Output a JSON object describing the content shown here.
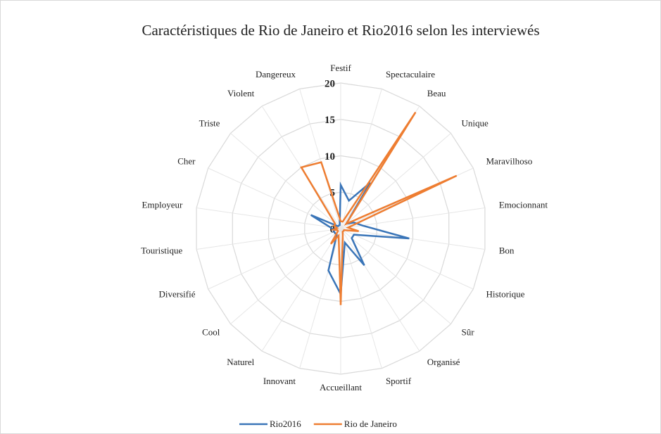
{
  "chart_data": {
    "type": "radar",
    "title": "Caractéristiques de Rio de Janeiro et Rio2016 selon les interviewés",
    "categories": [
      "Festif",
      "Spectaculaire",
      "Beau",
      "Unique",
      "Maravilhoso",
      "Emocionnant",
      "Bon",
      "Historique",
      "Sûr",
      "Organisé",
      "Sportif",
      "Accueillant",
      "Innovant",
      "Naturel",
      "Cool",
      "Diversifié",
      "Touristique",
      "Employeur",
      "Cher",
      "Triste",
      "Violent",
      "Dangereux"
    ],
    "series": [
      {
        "name": "Rio2016",
        "color": "#3a75b8",
        "values": [
          6,
          4,
          7.5,
          1,
          2,
          3,
          9.5,
          2,
          2,
          6,
          2,
          9,
          6,
          1,
          1,
          1,
          1,
          1.5,
          4.5,
          0.5,
          0.5,
          0.5
        ]
      },
      {
        "name": "Rio de Janeiro",
        "color": "#ee7d31",
        "values": [
          1,
          1,
          19,
          1,
          17.5,
          1,
          2.5,
          0.5,
          0.5,
          0.5,
          1,
          10.5,
          1,
          2.5,
          0.5,
          0.5,
          1,
          0.5,
          1,
          1,
          10,
          9.5
        ]
      }
    ],
    "ylim": [
      0,
      20
    ],
    "yticks": [
      0,
      5,
      10,
      15,
      20
    ],
    "grid": true,
    "legend": "bottom"
  }
}
